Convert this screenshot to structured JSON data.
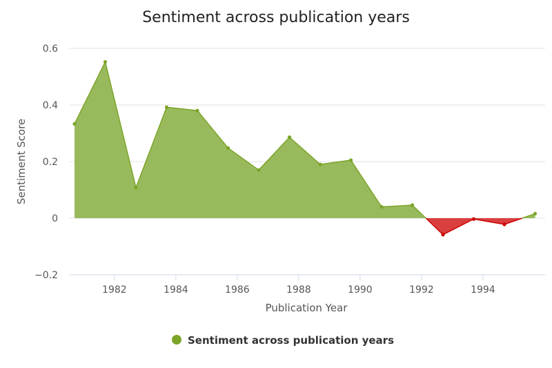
{
  "chart_data": {
    "type": "area",
    "title": "Sentiment across publication years",
    "xlabel": "Publication Year",
    "ylabel": "Sentiment Score",
    "xlim": [
      1980.7,
      1995.8
    ],
    "ylim": [
      -0.2,
      0.6
    ],
    "xticks": [
      "1982",
      "1984",
      "1986",
      "1988",
      "1990",
      "1992",
      "1994"
    ],
    "yticks": [
      "0.6",
      "0.4",
      "0.2",
      "0",
      "−0.2"
    ],
    "grid": true,
    "legend_position": "bottom-center",
    "positive_color": "#7ba428",
    "positive_fill": "#99ba5c",
    "negative_color": "#cc0000",
    "negative_fill": "#da3f3f",
    "series": [
      {
        "name": "Sentiment across publication years",
        "x": [
          1980.7,
          1981.7,
          1982.7,
          1983.7,
          1984.7,
          1985.7,
          1986.7,
          1987.7,
          1988.7,
          1989.7,
          1990.7,
          1991.7,
          1992.7,
          1993.7,
          1994.7,
          1995.7
        ],
        "values": [
          0.333,
          0.552,
          0.108,
          0.392,
          0.38,
          0.248,
          0.17,
          0.286,
          0.19,
          0.205,
          0.04,
          0.046,
          -0.058,
          -0.003,
          -0.022,
          0.016
        ]
      }
    ]
  }
}
